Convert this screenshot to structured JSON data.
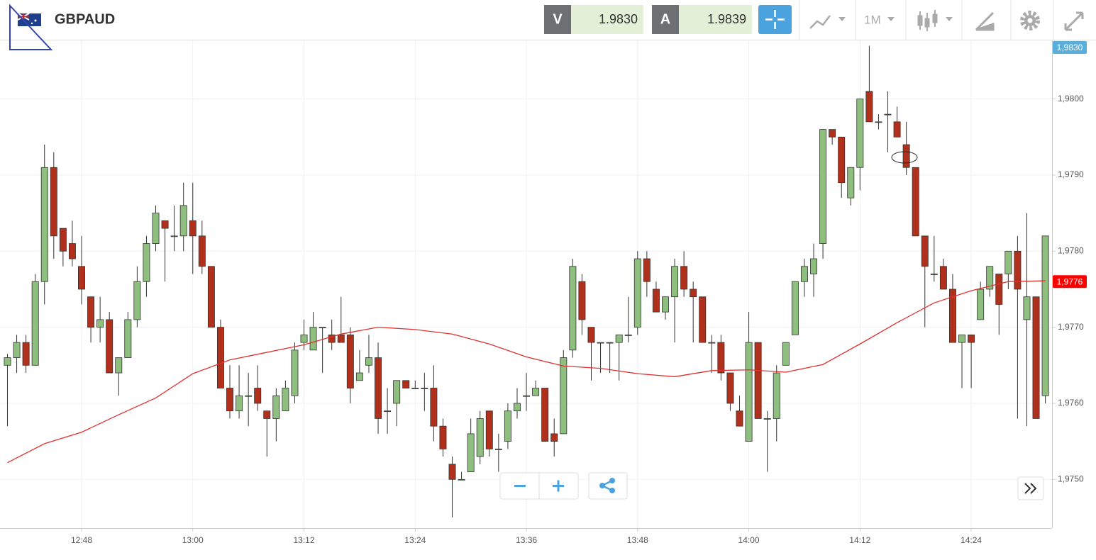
{
  "header": {
    "symbol": "GBPAUD",
    "sell_label": "V",
    "sell_price": "1.9830",
    "buy_label": "A",
    "buy_price": "1.9839",
    "timeframe": "1M"
  },
  "chart_data": {
    "type": "candlestick",
    "up_color": "#8fbf7f",
    "down_color": "#b0301c",
    "x": [
      760,
      761,
      762,
      763,
      764,
      765,
      766,
      767,
      768,
      769,
      770,
      771,
      772,
      773,
      774,
      775,
      776,
      777,
      778,
      779,
      780,
      781,
      782,
      783,
      784,
      785,
      786,
      787,
      788,
      789,
      790,
      791,
      792,
      793,
      794,
      795,
      796,
      797,
      798,
      799,
      800,
      801,
      802,
      803,
      804,
      805,
      806,
      807,
      808,
      809,
      810,
      811,
      812,
      813,
      814,
      815,
      816,
      817,
      818,
      819,
      820,
      821,
      822,
      823,
      824,
      825,
      826,
      827,
      828,
      829,
      830,
      831,
      832,
      833,
      834,
      835,
      836,
      837,
      838,
      839,
      840,
      841,
      842,
      843,
      844,
      845,
      846,
      847,
      848,
      849,
      850,
      851,
      852,
      853,
      854,
      855,
      856,
      857,
      858,
      859,
      860,
      861,
      862,
      863,
      864,
      865,
      866,
      867,
      868,
      869,
      870,
      871,
      872
    ],
    "open": [
      1.9765,
      1.9766,
      1.9768,
      1.9765,
      1.9776,
      1.9791,
      1.9783,
      1.9781,
      1.9778,
      1.9774,
      1.977,
      1.9771,
      1.9764,
      1.9766,
      1.9771,
      1.9776,
      1.9781,
      1.9784,
      1.9782,
      1.9782,
      1.9784,
      1.9782,
      1.9778,
      1.977,
      1.9762,
      1.9759,
      1.9761,
      1.9762,
      1.9759,
      1.9758,
      1.9759,
      1.9761,
      1.9768,
      1.9767,
      1.977,
      1.9769,
      1.9769,
      1.9769,
      1.9763,
      1.9765,
      1.9766,
      1.9759,
      1.976,
      1.9763,
      1.9762,
      1.9762,
      1.9762,
      1.9757,
      1.9752,
      1.975,
      1.9751,
      1.9753,
      1.9759,
      1.9754,
      1.9755,
      1.9759,
      1.9761,
      1.9761,
      1.9762,
      1.9756,
      1.9756,
      1.9767,
      1.9776,
      1.977,
      1.9768,
      1.9768,
      1.9768,
      1.9769,
      1.977,
      1.9779,
      1.9775,
      1.9772,
      1.9774,
      1.9778,
      1.9775,
      1.9774,
      1.9768,
      1.9768,
      1.9764,
      1.9759,
      1.9755,
      1.9768,
      1.9758,
      1.9758,
      1.9765,
      1.9769,
      1.9776,
      1.9777,
      1.9781,
      1.9796,
      1.9795,
      1.9787,
      1.9791,
      1.9801,
      1.9797,
      1.9798,
      1.9797,
      1.9794,
      1.9791,
      1.9782,
      1.9777,
      1.9778,
      1.9775,
      1.9768,
      1.9769,
      1.9771,
      1.9775,
      1.9777,
      1.9777,
      1.978,
      1.9771,
      1.9774,
      1.9761
    ],
    "high": [
      1.97665,
      1.9769,
      1.9769,
      1.9777,
      1.9794,
      1.9793,
      1.9783,
      1.9784,
      1.9782,
      1.9774,
      1.9774,
      1.9772,
      1.9766,
      1.9772,
      1.9778,
      1.9782,
      1.9786,
      1.9784,
      1.9786,
      1.9789,
      1.9789,
      1.9784,
      1.9778,
      1.9771,
      1.9765,
      1.9765,
      1.9764,
      1.9765,
      1.9759,
      1.9762,
      1.9763,
      1.9768,
      1.9771,
      1.9772,
      1.977,
      1.9771,
      1.9774,
      1.977,
      1.9767,
      1.9769,
      1.9768,
      1.9762,
      1.9763,
      1.9763,
      1.9763,
      1.9764,
      1.9765,
      1.9758,
      1.9753,
      1.9751,
      1.9758,
      1.9759,
      1.9759,
      1.9756,
      1.976,
      1.9762,
      1.9764,
      1.9763,
      1.9762,
      1.9758,
      1.9767,
      1.9779,
      1.9777,
      1.977,
      1.9768,
      1.9768,
      1.9769,
      1.9774,
      1.978,
      1.978,
      1.9776,
      1.9774,
      1.9779,
      1.978,
      1.9776,
      1.9774,
      1.9769,
      1.9769,
      1.9764,
      1.9761,
      1.9772,
      1.9768,
      1.9759,
      1.9765,
      1.9768,
      1.9776,
      1.9779,
      1.9781,
      1.9796,
      1.9796,
      1.9795,
      1.9791,
      1.98,
      1.9807,
      1.9798,
      1.9801,
      1.9799,
      1.9797,
      1.9791,
      1.9782,
      1.9782,
      1.9779,
      1.9777,
      1.9769,
      1.9769,
      1.9776,
      1.9778,
      1.9777,
      1.978,
      1.9782,
      1.9785,
      1.9774,
      1.9782
    ],
    "low": [
      1.9757,
      1.9764,
      1.9764,
      1.9765,
      1.9773,
      1.9779,
      1.9778,
      1.9778,
      1.9773,
      1.9768,
      1.9768,
      1.9764,
      1.9761,
      1.9766,
      1.977,
      1.9774,
      1.978,
      1.9776,
      1.978,
      1.978,
      1.9777,
      1.9777,
      1.977,
      1.9762,
      1.9758,
      1.9758,
      1.9757,
      1.9759,
      1.9753,
      1.9755,
      1.9759,
      1.976,
      1.9767,
      1.9767,
      1.9764,
      1.9767,
      1.9768,
      1.976,
      1.9763,
      1.9764,
      1.9756,
      1.9756,
      1.9757,
      1.9762,
      1.9762,
      1.9759,
      1.9755,
      1.9753,
      1.9745,
      1.975,
      1.9751,
      1.9752,
      1.9753,
      1.9751,
      1.9754,
      1.9758,
      1.9759,
      1.9761,
      1.9755,
      1.9753,
      1.9756,
      1.9766,
      1.9769,
      1.9763,
      1.9764,
      1.9764,
      1.9763,
      1.9768,
      1.9769,
      1.9774,
      1.9772,
      1.9771,
      1.9768,
      1.9774,
      1.9768,
      1.9768,
      1.9764,
      1.9763,
      1.9759,
      1.9757,
      1.9755,
      1.9758,
      1.9751,
      1.9755,
      1.9765,
      1.9769,
      1.9774,
      1.9774,
      1.9779,
      1.9794,
      1.9787,
      1.9786,
      1.9788,
      1.9797,
      1.9796,
      1.9793,
      1.9795,
      1.979,
      1.9782,
      1.977,
      1.9776,
      1.9775,
      1.9768,
      1.9762,
      1.9762,
      1.9771,
      1.9774,
      1.9769,
      1.9775,
      1.9758,
      1.9757,
      1.9758,
      1.976
    ],
    "close": [
      1.9766,
      1.9768,
      1.9765,
      1.9776,
      1.9791,
      1.9782,
      1.978,
      1.9779,
      1.9775,
      1.977,
      1.9771,
      1.9764,
      1.9766,
      1.9771,
      1.9776,
      1.9781,
      1.9785,
      1.9783,
      1.9782,
      1.9786,
      1.9782,
      1.9778,
      1.977,
      1.9762,
      1.9759,
      1.9761,
      1.9761,
      1.976,
      1.9758,
      1.9761,
      1.9762,
      1.9767,
      1.9769,
      1.977,
      1.977,
      1.9768,
      1.9768,
      1.9762,
      1.9764,
      1.9766,
      1.9758,
      1.9759,
      1.9763,
      1.9762,
      1.9762,
      1.9762,
      1.9757,
      1.9754,
      1.975,
      1.975,
      1.9756,
      1.9758,
      1.9754,
      1.9754,
      1.9759,
      1.976,
      1.9761,
      1.9762,
      1.9755,
      1.9755,
      1.9766,
      1.9778,
      1.9771,
      1.9768,
      1.9768,
      1.9768,
      1.9769,
      1.9769,
      1.9779,
      1.9776,
      1.9772,
      1.9774,
      1.9778,
      1.9775,
      1.9774,
      1.9768,
      1.9768,
      1.9764,
      1.976,
      1.9757,
      1.9768,
      1.9758,
      1.9758,
      1.9764,
      1.9768,
      1.9776,
      1.9778,
      1.9779,
      1.9796,
      1.9795,
      1.9789,
      1.9791,
      1.98,
      1.9797,
      1.9797,
      1.9798,
      1.9795,
      1.9791,
      1.9782,
      1.9778,
      1.9777,
      1.9775,
      1.9768,
      1.9769,
      1.9768,
      1.9775,
      1.9778,
      1.9773,
      1.978,
      1.9775,
      1.9774,
      1.9758,
      1.9782
    ],
    "lines": [
      {
        "color": "#e03030",
        "x": [
          760,
          764,
          768,
          772,
          776,
          780,
          784,
          788,
          792,
          796,
          800,
          804,
          808,
          812,
          816,
          820,
          824,
          828,
          832,
          836,
          840,
          844,
          848,
          852,
          856,
          860,
          864,
          868,
          872
        ],
        "values": [
          1.97522,
          1.97547,
          1.97562,
          1.97585,
          1.97607,
          1.97639,
          1.97657,
          1.97667,
          1.97677,
          1.97691,
          1.977,
          1.97697,
          1.97691,
          1.97678,
          1.97661,
          1.97649,
          1.97646,
          1.97639,
          1.97635,
          1.97643,
          1.97644,
          1.97641,
          1.97651,
          1.97678,
          1.97706,
          1.97732,
          1.97748,
          1.9776,
          1.97761
        ]
      }
    ],
    "xlim": [
      759.35,
      872.72
    ],
    "ylim": [
      1.97436,
      1.98077
    ],
    "xticks": [
      {
        "value": 768,
        "label": "12:48"
      },
      {
        "value": 780,
        "label": "13:00"
      },
      {
        "value": 792,
        "label": "13:12"
      },
      {
        "value": 804,
        "label": "13:24"
      },
      {
        "value": 816,
        "label": "13:36"
      },
      {
        "value": 828,
        "label": "13:48"
      },
      {
        "value": 840,
        "label": "14:00"
      },
      {
        "value": 852,
        "label": "14:12"
      },
      {
        "value": 864,
        "label": "14:24"
      }
    ],
    "yticks": [
      {
        "value": 1.975,
        "label": "1,9750"
      },
      {
        "value": 1.976,
        "label": "1,9760"
      },
      {
        "value": 1.977,
        "label": "1,9770"
      },
      {
        "value": 1.978,
        "label": "1,9780"
      },
      {
        "value": 1.979,
        "label": "1,9790"
      },
      {
        "value": 1.98,
        "label": "1,9800"
      }
    ],
    "grid": true,
    "price_tags": [
      {
        "value": 1.983,
        "label": "1,9830",
        "color": "#5aaedc"
      },
      {
        "value": 1.9776,
        "label": "1,9776",
        "color": "#ff0000"
      }
    ]
  }
}
